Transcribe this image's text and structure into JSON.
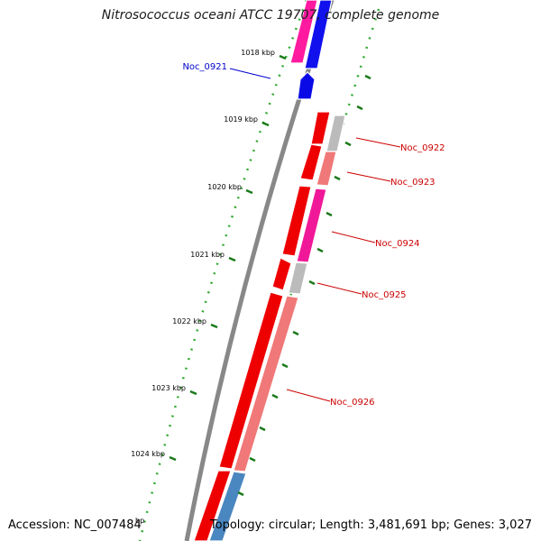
{
  "title": "Nitrosococcus oceani ATCC 19707, complete genome",
  "accession": "Accession: NC_007484",
  "unit": "bp",
  "topology": "Topology: circular; Length: 3,481,691 bp; Genes: 3,027",
  "ticks": [
    "1018 kbp",
    "1019 kbp",
    "1020 kbp",
    "1021 kbp",
    "1022 kbp",
    "1023 kbp",
    "1024 kbp"
  ],
  "genes": [
    {
      "name": "Noc_0921",
      "color": "#0000cc"
    },
    {
      "name": "Noc_0922",
      "color": "#cc0000"
    },
    {
      "name": "Noc_0923",
      "color": "#cc0000"
    },
    {
      "name": "Noc_0924",
      "color": "#cc0000"
    },
    {
      "name": "Noc_0925",
      "color": "#cc0000"
    },
    {
      "name": "Noc_0926",
      "color": "#cc0000"
    }
  ]
}
